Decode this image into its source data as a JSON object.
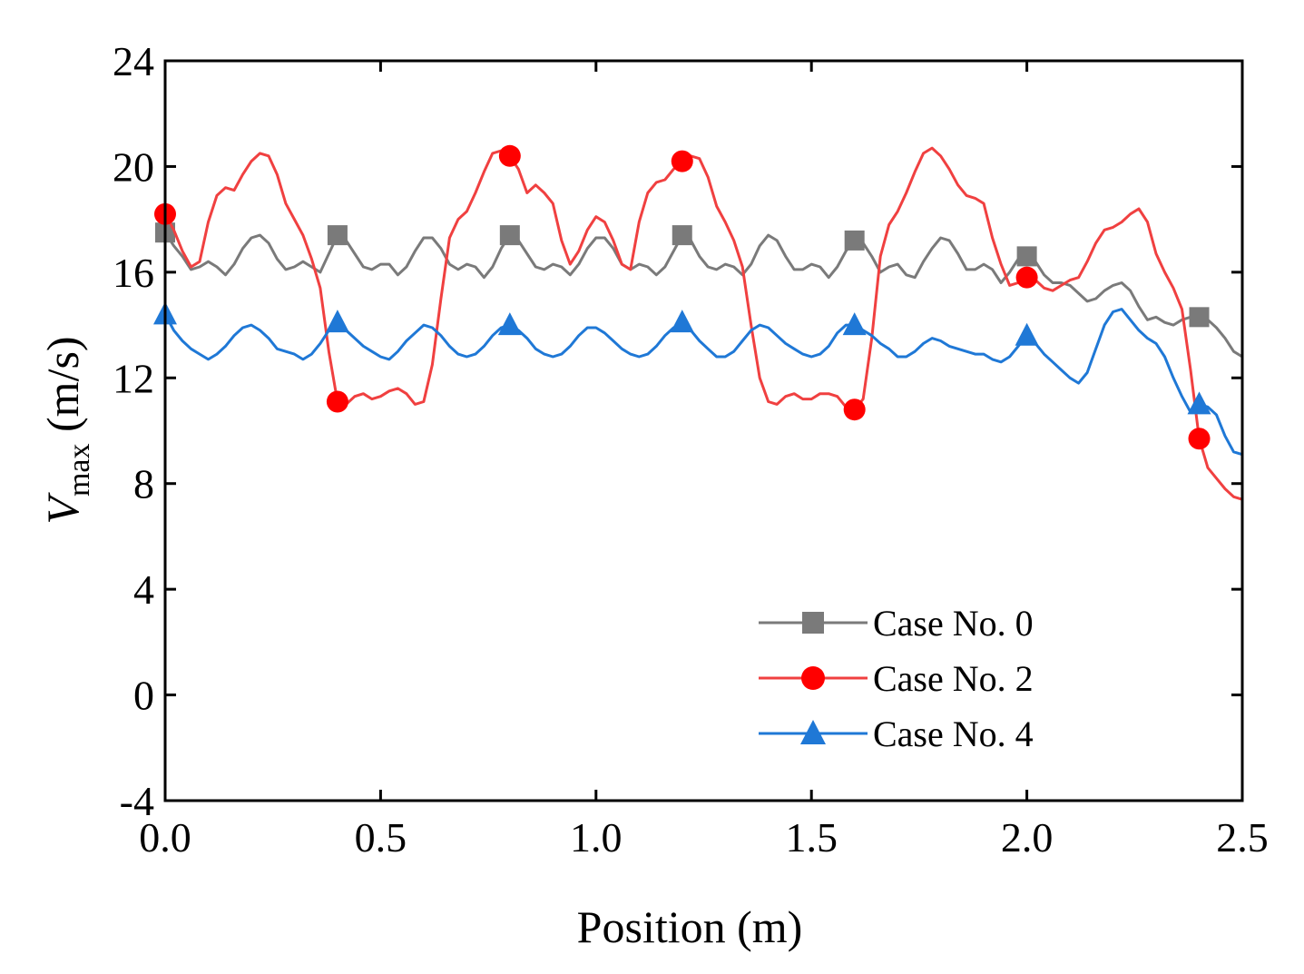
{
  "chart_data": {
    "type": "line",
    "title": "",
    "xlabel": "Position (m)",
    "ylabel_main": "V",
    "ylabel_sub": "max",
    "ylabel_unit": " (m/s)",
    "xlim": [
      0,
      2.5
    ],
    "ylim": [
      -4,
      24
    ],
    "xticks": [
      0,
      0.5,
      1,
      1.5,
      2,
      2.5
    ],
    "xtick_labels": [
      "0.0",
      "0.5",
      "1.0",
      "1.5",
      "2.0",
      "2.5"
    ],
    "yticks": [
      -4,
      0,
      4,
      8,
      12,
      16,
      20,
      24
    ],
    "ytick_labels": [
      "-4",
      "0",
      "4",
      "8",
      "12",
      "16",
      "20",
      "24"
    ],
    "grid": false,
    "legend_position": "bottom-right",
    "series": [
      {
        "name": "Case No. 0",
        "color": "#7a7a7a",
        "marker": "square",
        "marker_x": [
          0,
          0.4,
          0.8,
          1.2,
          1.6,
          2.0,
          2.4
        ],
        "x": [
          0,
          0.02,
          0.04,
          0.06,
          0.08,
          0.1,
          0.12,
          0.14,
          0.16,
          0.18,
          0.2,
          0.22,
          0.24,
          0.26,
          0.28,
          0.3,
          0.32,
          0.34,
          0.36,
          0.38,
          0.4,
          0.42,
          0.44,
          0.46,
          0.48,
          0.5,
          0.52,
          0.54,
          0.56,
          0.58,
          0.6,
          0.62,
          0.64,
          0.66,
          0.68,
          0.7,
          0.72,
          0.74,
          0.76,
          0.78,
          0.8,
          0.82,
          0.84,
          0.86,
          0.88,
          0.9,
          0.92,
          0.94,
          0.96,
          0.98,
          1.0,
          1.02,
          1.04,
          1.06,
          1.08,
          1.1,
          1.12,
          1.14,
          1.16,
          1.18,
          1.2,
          1.22,
          1.24,
          1.26,
          1.28,
          1.3,
          1.32,
          1.34,
          1.36,
          1.38,
          1.4,
          1.42,
          1.44,
          1.46,
          1.48,
          1.5,
          1.52,
          1.54,
          1.56,
          1.58,
          1.6,
          1.62,
          1.64,
          1.66,
          1.68,
          1.7,
          1.72,
          1.74,
          1.76,
          1.78,
          1.8,
          1.82,
          1.84,
          1.86,
          1.88,
          1.9,
          1.92,
          1.94,
          1.96,
          1.98,
          2.0,
          2.02,
          2.04,
          2.06,
          2.08,
          2.1,
          2.12,
          2.14,
          2.16,
          2.18,
          2.2,
          2.22,
          2.24,
          2.26,
          2.28,
          2.3,
          2.32,
          2.34,
          2.36,
          2.38,
          2.4,
          2.42,
          2.44,
          2.46,
          2.48,
          2.5
        ],
        "y": [
          17.5,
          17.0,
          16.6,
          16.1,
          16.2,
          16.4,
          16.2,
          15.9,
          16.3,
          16.9,
          17.3,
          17.4,
          17.1,
          16.5,
          16.1,
          16.2,
          16.4,
          16.2,
          16.0,
          16.7,
          17.4,
          17.2,
          16.7,
          16.2,
          16.1,
          16.3,
          16.3,
          15.9,
          16.2,
          16.8,
          17.3,
          17.3,
          16.9,
          16.3,
          16.1,
          16.3,
          16.2,
          15.8,
          16.2,
          16.9,
          17.4,
          17.2,
          16.7,
          16.2,
          16.1,
          16.3,
          16.2,
          15.9,
          16.3,
          16.9,
          17.3,
          17.3,
          16.9,
          16.3,
          16.1,
          16.3,
          16.2,
          15.9,
          16.2,
          16.8,
          17.4,
          17.2,
          16.6,
          16.2,
          16.1,
          16.3,
          16.2,
          15.9,
          16.3,
          17.0,
          17.4,
          17.2,
          16.6,
          16.1,
          16.1,
          16.3,
          16.2,
          15.8,
          16.2,
          16.8,
          17.2,
          17.1,
          16.6,
          16.0,
          16.2,
          16.3,
          15.9,
          15.8,
          16.4,
          16.9,
          17.3,
          17.2,
          16.7,
          16.1,
          16.1,
          16.3,
          16.1,
          15.6,
          16.0,
          16.5,
          16.6,
          16.4,
          15.9,
          15.6,
          15.6,
          15.5,
          15.2,
          14.9,
          15.0,
          15.3,
          15.5,
          15.6,
          15.3,
          14.7,
          14.2,
          14.3,
          14.1,
          14.0,
          14.2,
          14.3,
          14.3,
          14.2,
          13.9,
          13.5,
          13.0,
          12.8
        ]
      },
      {
        "name": "Case No. 2",
        "color": "#f04040",
        "marker_color": "#ff0000",
        "marker": "circle",
        "marker_x": [
          0,
          0.4,
          0.8,
          1.2,
          1.6,
          2.0,
          2.4
        ],
        "x": [
          0,
          0.02,
          0.04,
          0.06,
          0.08,
          0.1,
          0.12,
          0.14,
          0.16,
          0.18,
          0.2,
          0.22,
          0.24,
          0.26,
          0.28,
          0.3,
          0.32,
          0.34,
          0.36,
          0.38,
          0.4,
          0.42,
          0.44,
          0.46,
          0.48,
          0.5,
          0.52,
          0.54,
          0.56,
          0.58,
          0.6,
          0.62,
          0.64,
          0.66,
          0.68,
          0.7,
          0.72,
          0.74,
          0.76,
          0.78,
          0.8,
          0.82,
          0.84,
          0.86,
          0.88,
          0.9,
          0.92,
          0.94,
          0.96,
          0.98,
          1.0,
          1.02,
          1.04,
          1.06,
          1.08,
          1.1,
          1.12,
          1.14,
          1.16,
          1.18,
          1.2,
          1.22,
          1.24,
          1.26,
          1.28,
          1.3,
          1.32,
          1.34,
          1.36,
          1.38,
          1.4,
          1.42,
          1.44,
          1.46,
          1.48,
          1.5,
          1.52,
          1.54,
          1.56,
          1.58,
          1.6,
          1.62,
          1.64,
          1.66,
          1.68,
          1.7,
          1.72,
          1.74,
          1.76,
          1.78,
          1.8,
          1.82,
          1.84,
          1.86,
          1.88,
          1.9,
          1.92,
          1.94,
          1.96,
          1.98,
          2.0,
          2.02,
          2.04,
          2.06,
          2.08,
          2.1,
          2.12,
          2.14,
          2.16,
          2.18,
          2.2,
          2.22,
          2.24,
          2.26,
          2.28,
          2.3,
          2.32,
          2.34,
          2.36,
          2.38,
          2.4,
          2.42,
          2.44,
          2.46,
          2.48,
          2.5
        ],
        "y": [
          18.2,
          17.6,
          16.8,
          16.2,
          16.4,
          17.9,
          18.9,
          19.2,
          19.1,
          19.7,
          20.2,
          20.5,
          20.4,
          19.7,
          18.6,
          18.0,
          17.4,
          16.5,
          15.4,
          13.0,
          11.1,
          11.0,
          11.3,
          11.4,
          11.2,
          11.3,
          11.5,
          11.6,
          11.4,
          11.0,
          11.1,
          12.5,
          15.0,
          17.3,
          18.0,
          18.3,
          19.0,
          19.8,
          20.5,
          20.6,
          20.4,
          19.9,
          19.0,
          19.3,
          19.0,
          18.6,
          17.2,
          16.3,
          16.8,
          17.6,
          18.1,
          17.9,
          17.2,
          16.3,
          16.1,
          17.9,
          19.0,
          19.4,
          19.5,
          19.9,
          20.2,
          20.4,
          20.3,
          19.6,
          18.5,
          17.9,
          17.2,
          16.2,
          14.0,
          12.0,
          11.1,
          11.0,
          11.3,
          11.4,
          11.2,
          11.2,
          11.4,
          11.4,
          11.3,
          10.9,
          10.8,
          11.2,
          13.5,
          16.6,
          17.8,
          18.3,
          19.0,
          19.8,
          20.5,
          20.7,
          20.4,
          19.9,
          19.3,
          18.9,
          18.8,
          18.6,
          17.3,
          16.3,
          15.5,
          15.6,
          15.8,
          15.7,
          15.4,
          15.3,
          15.5,
          15.7,
          15.8,
          16.4,
          17.1,
          17.6,
          17.7,
          17.9,
          18.2,
          18.4,
          17.9,
          16.7,
          16.0,
          15.4,
          14.6,
          12.3,
          9.7,
          8.6,
          8.2,
          7.8,
          7.5,
          7.4
        ]
      },
      {
        "name": "Case No. 4",
        "color": "#1f78d6",
        "marker": "triangle",
        "marker_x": [
          0,
          0.4,
          0.8,
          1.2,
          1.6,
          2.0,
          2.4
        ],
        "x": [
          0,
          0.02,
          0.04,
          0.06,
          0.08,
          0.1,
          0.12,
          0.14,
          0.16,
          0.18,
          0.2,
          0.22,
          0.24,
          0.26,
          0.28,
          0.3,
          0.32,
          0.34,
          0.36,
          0.38,
          0.4,
          0.42,
          0.44,
          0.46,
          0.48,
          0.5,
          0.52,
          0.54,
          0.56,
          0.58,
          0.6,
          0.62,
          0.64,
          0.66,
          0.68,
          0.7,
          0.72,
          0.74,
          0.76,
          0.78,
          0.8,
          0.82,
          0.84,
          0.86,
          0.88,
          0.9,
          0.92,
          0.94,
          0.96,
          0.98,
          1.0,
          1.02,
          1.04,
          1.06,
          1.08,
          1.1,
          1.12,
          1.14,
          1.16,
          1.18,
          1.2,
          1.22,
          1.24,
          1.26,
          1.28,
          1.3,
          1.32,
          1.34,
          1.36,
          1.38,
          1.4,
          1.42,
          1.44,
          1.46,
          1.48,
          1.5,
          1.52,
          1.54,
          1.56,
          1.58,
          1.6,
          1.62,
          1.64,
          1.66,
          1.68,
          1.7,
          1.72,
          1.74,
          1.76,
          1.78,
          1.8,
          1.82,
          1.84,
          1.86,
          1.88,
          1.9,
          1.92,
          1.94,
          1.96,
          1.98,
          2.0,
          2.02,
          2.04,
          2.06,
          2.08,
          2.1,
          2.12,
          2.14,
          2.16,
          2.18,
          2.2,
          2.22,
          2.24,
          2.26,
          2.28,
          2.3,
          2.32,
          2.34,
          2.36,
          2.38,
          2.4,
          2.42,
          2.44,
          2.46,
          2.48,
          2.5
        ],
        "y": [
          14.4,
          13.8,
          13.4,
          13.1,
          12.9,
          12.7,
          12.9,
          13.2,
          13.6,
          13.9,
          14.0,
          13.8,
          13.5,
          13.1,
          13.0,
          12.9,
          12.7,
          12.9,
          13.3,
          13.8,
          14.1,
          13.8,
          13.5,
          13.2,
          13.0,
          12.8,
          12.7,
          13.0,
          13.4,
          13.7,
          14.0,
          13.9,
          13.6,
          13.2,
          12.9,
          12.8,
          12.9,
          13.2,
          13.6,
          13.9,
          14.0,
          13.8,
          13.5,
          13.1,
          12.9,
          12.8,
          12.9,
          13.2,
          13.6,
          13.9,
          13.9,
          13.7,
          13.4,
          13.1,
          12.9,
          12.8,
          12.9,
          13.2,
          13.6,
          13.9,
          14.1,
          13.8,
          13.4,
          13.1,
          12.8,
          12.8,
          13.0,
          13.4,
          13.8,
          14.0,
          13.9,
          13.6,
          13.3,
          13.1,
          12.9,
          12.8,
          12.9,
          13.2,
          13.7,
          14.0,
          14.0,
          13.8,
          13.6,
          13.3,
          13.1,
          12.8,
          12.8,
          13.0,
          13.3,
          13.5,
          13.4,
          13.2,
          13.1,
          13.0,
          12.9,
          12.9,
          12.7,
          12.6,
          12.8,
          13.2,
          13.6,
          13.3,
          12.9,
          12.6,
          12.3,
          12.0,
          11.8,
          12.2,
          13.1,
          14.0,
          14.5,
          14.6,
          14.2,
          13.8,
          13.5,
          13.3,
          12.8,
          12.0,
          11.3,
          10.7,
          11.0,
          10.9,
          10.6,
          9.8,
          9.2,
          9.1
        ]
      }
    ]
  }
}
